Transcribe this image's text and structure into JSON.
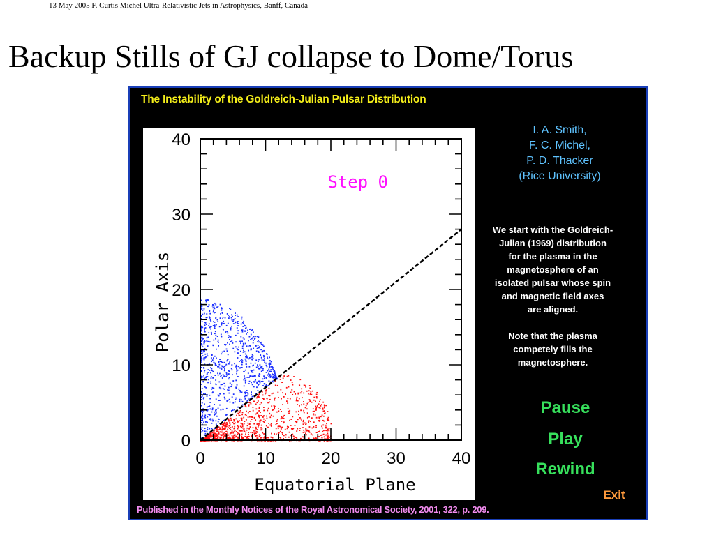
{
  "header": {
    "text": "13 May 2005 F. Curtis Michel Ultra-Relativistic Jets in Astrophysics, Banff, Canada"
  },
  "slide": {
    "title": "Backup Stills of GJ collapse to Dome/Torus"
  },
  "panel": {
    "heading": "The Instability of the Goldreich-Julian Pulsar Distribution",
    "authors": [
      "I. A. Smith,",
      "F. C. Michel,",
      "P. D. Thacker",
      "(Rice University)"
    ],
    "description": [
      "We start with the Goldreich-",
      "Julian  (1969) distribution",
      "for the plasma in the",
      "magnetosphere of an",
      "isolated pulsar whose spin",
      "and magnetic field axes",
      "are aligned.",
      "",
      "Note that the plasma",
      "competely fills the",
      "magnetosphere."
    ],
    "buttons": {
      "pause": "Pause",
      "play": "Play",
      "rewind": "Rewind",
      "exit": "Exit"
    },
    "footer": "Published in the Monthly Notices of the Royal Astronomical Society, 2001, 322, p. 209.",
    "colors": {
      "heading": "#f4ee1a",
      "authors": "#5fc3ff",
      "buttons": "#37e05c",
      "exit": "#ff9a3c",
      "footer": "#f38cf0",
      "border": "#1a3fb8"
    }
  },
  "chart_data": {
    "type": "scatter",
    "title": "",
    "annotation": "Step 0",
    "xlabel": "Equatorial Plane",
    "ylabel": "Polar Axis",
    "xlim": [
      0,
      40
    ],
    "ylim": [
      0,
      40
    ],
    "xticks": [
      0,
      10,
      20,
      30,
      40
    ],
    "yticks": [
      0,
      10,
      20,
      30,
      40
    ],
    "series": [
      {
        "color": "#1a2fff",
        "region": "above diagonal (polar dome)",
        "x_range": [
          0,
          13
        ],
        "y_range": [
          0,
          19
        ]
      },
      {
        "color": "#ff1010",
        "region": "below diagonal (equatorial torus)",
        "x_range": [
          0,
          20
        ],
        "y_range": [
          0,
          10
        ]
      }
    ],
    "dashed_line": {
      "x": [
        0,
        40
      ],
      "y": [
        0,
        28
      ]
    }
  }
}
